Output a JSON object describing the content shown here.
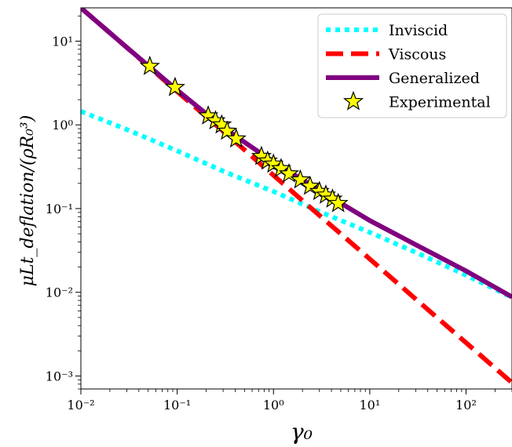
{
  "chart_data": {
    "type": "line",
    "title": "",
    "xlabel": "γ₀",
    "ylabel": "μLt_deflation/(ρR₀³)",
    "xscale": "log",
    "yscale": "log",
    "xlim": [
      0.01,
      300
    ],
    "ylim": [
      0.0007,
      25
    ],
    "x_ticks": [
      {
        "value": 0.01,
        "label": "10⁻²"
      },
      {
        "value": 0.1,
        "label": "10⁻¹"
      },
      {
        "value": 1,
        "label": "10⁰"
      },
      {
        "value": 10,
        "label": "10¹"
      },
      {
        "value": 100,
        "label": "10²"
      }
    ],
    "y_ticks": [
      {
        "value": 0.001,
        "label": "10⁻³"
      },
      {
        "value": 0.01,
        "label": "10⁻²"
      },
      {
        "value": 0.1,
        "label": "10⁻¹"
      },
      {
        "value": 1,
        "label": "10⁰"
      },
      {
        "value": 10,
        "label": "10¹"
      }
    ],
    "legend_position": "top-right",
    "series": [
      {
        "name": "Inviscid",
        "style": "dotted",
        "color": "#00ffff",
        "x": [
          0.01,
          0.03,
          0.1,
          0.3,
          1,
          3,
          10,
          30,
          100,
          300
        ],
        "y": [
          1.45,
          0.88,
          0.49,
          0.28,
          0.16,
          0.092,
          0.052,
          0.03,
          0.016,
          0.0087
        ]
      },
      {
        "name": "Viscous",
        "style": "dashed",
        "color": "#ff0000",
        "x": [
          0.01,
          0.03,
          0.1,
          0.3,
          1,
          3,
          10,
          30,
          100,
          300
        ],
        "y": [
          25,
          8.4,
          2.5,
          0.84,
          0.25,
          0.083,
          0.025,
          0.0083,
          0.0025,
          0.00083
        ]
      },
      {
        "name": "Generalized",
        "style": "solid",
        "color": "#800080",
        "x": [
          0.01,
          0.03,
          0.1,
          0.3,
          1,
          2,
          5,
          10,
          30,
          100,
          300
        ],
        "y": [
          25,
          8.4,
          2.6,
          0.93,
          0.36,
          0.22,
          0.116,
          0.072,
          0.037,
          0.018,
          0.0088
        ]
      },
      {
        "name": "Experimental",
        "style": "markers",
        "marker": "star",
        "color": "#ffff00",
        "x": [
          0.052,
          0.095,
          0.21,
          0.25,
          0.29,
          0.33,
          0.41,
          0.75,
          0.87,
          1.0,
          1.2,
          1.45,
          1.9,
          2.4,
          3.0,
          3.5,
          4.1,
          4.7
        ],
        "y": [
          5.0,
          2.8,
          1.28,
          1.12,
          1.0,
          0.84,
          0.68,
          0.42,
          0.37,
          0.34,
          0.3,
          0.26,
          0.22,
          0.185,
          0.16,
          0.145,
          0.13,
          0.115
        ]
      }
    ]
  }
}
